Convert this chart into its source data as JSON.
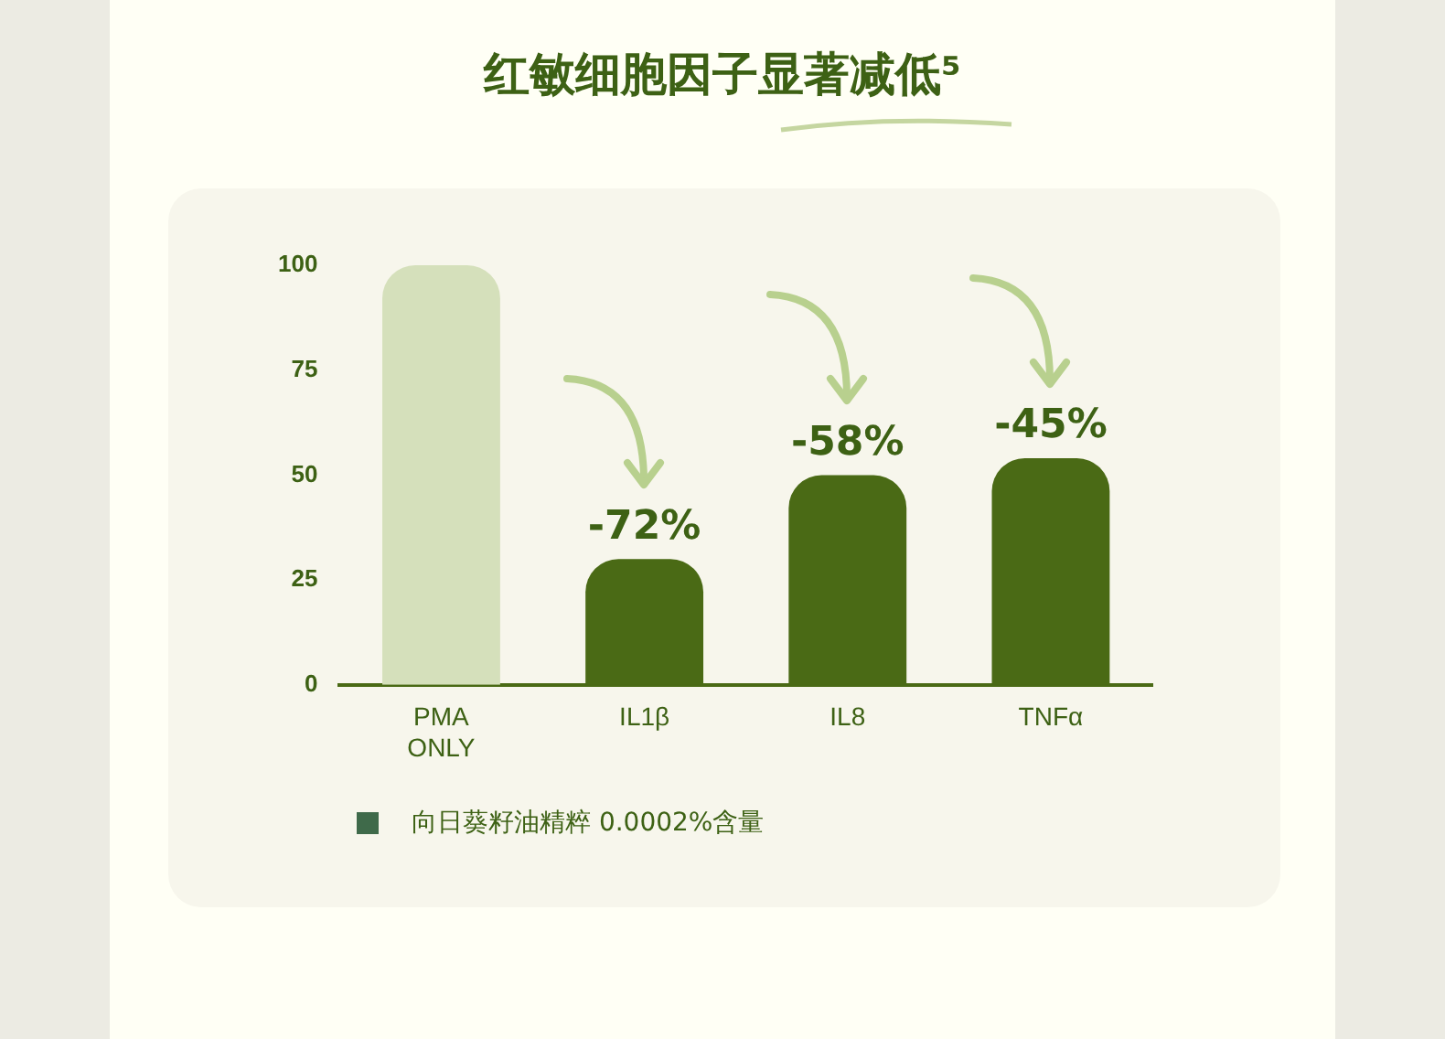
{
  "chart_data": {
    "type": "bar",
    "title": "红敏细胞因子显著减低⁵",
    "categories": [
      "PMA ONLY",
      "IL1β",
      "IL8",
      "TNFα"
    ],
    "series": [
      {
        "name": "向日葵籽油精粹 0.0002%含量",
        "color": "#3f6a4a",
        "colors": [
          "#d5e0bb",
          "#4a6a15",
          "#4a6a15",
          "#4a6a15"
        ],
        "values": [
          100,
          30,
          50,
          54
        ]
      }
    ],
    "ylim": [
      0,
      100
    ],
    "yticks": [
      0,
      25,
      50,
      75,
      100
    ],
    "grid": false,
    "legend": "bottom",
    "annotations": [
      {
        "text": "-72%",
        "x": "IL1β",
        "y": 30
      },
      {
        "text": "-58%",
        "x": "IL8",
        "y": 50
      },
      {
        "text": "-45%",
        "x": "TNFα",
        "y": 54
      }
    ]
  }
}
